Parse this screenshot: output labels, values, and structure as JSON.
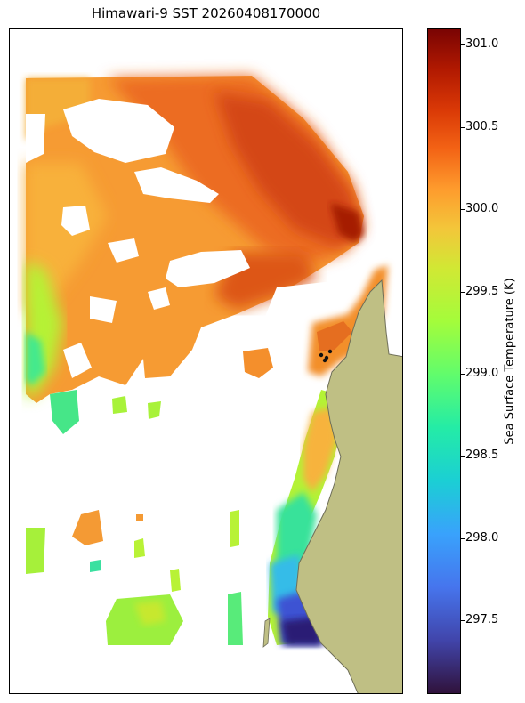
{
  "title": "Himawari-9 SST 20260408170000",
  "colorbar": {
    "label": "Sea Surface Temperature (K)",
    "min": 297.05,
    "max": 301.1,
    "ticks": [
      "301.0",
      "300.5",
      "300.0",
      "299.5",
      "299.0",
      "298.5",
      "298.0",
      "297.5"
    ],
    "tick_values": [
      301.0,
      300.5,
      300.0,
      299.5,
      299.0,
      298.5,
      298.0,
      297.5
    ],
    "colormap": "turbo"
  },
  "colors": {
    "land": "#bfbf84",
    "coast": "#6e6e58",
    "missing": "#ffffff"
  },
  "map": {
    "type": "sst-map",
    "coastline": "land on east side",
    "missing_data": "white"
  }
}
